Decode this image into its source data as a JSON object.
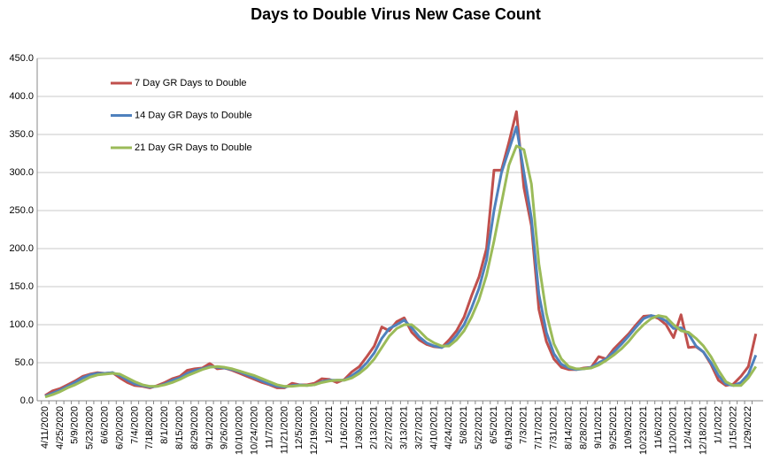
{
  "chart_data": {
    "type": "line",
    "title": "Days to Double Virus New Case Count",
    "categories": [
      "4/11/2020",
      null,
      "4/25/2020",
      null,
      "5/9/2020",
      null,
      "5/23/2020",
      null,
      "6/6/2020",
      null,
      "6/20/2020",
      null,
      "7/4/2020",
      null,
      "7/18/2020",
      null,
      "8/1/2020",
      null,
      "8/15/2020",
      null,
      "8/29/2020",
      null,
      "9/12/2020",
      null,
      "9/26/2020",
      null,
      "10/10/2020",
      null,
      "10/24/2020",
      null,
      "11/7/2020",
      null,
      "11/21/2020",
      null,
      "12/5/2020",
      null,
      "12/19/2020",
      null,
      "1/2/2021",
      null,
      "1/16/2021",
      null,
      "1/30/2021",
      null,
      "2/13/2021",
      null,
      "2/27/2021",
      null,
      "3/13/2021",
      null,
      "3/27/2021",
      null,
      "4/10/2021",
      null,
      "4/24/2021",
      null,
      "5/8/2021",
      null,
      "5/22/2021",
      null,
      "6/5/2021",
      null,
      "6/19/2021",
      null,
      "7/3/2021",
      null,
      "7/17/2021",
      null,
      "7/31/2021",
      null,
      "8/14/2021",
      null,
      "8/28/2021",
      null,
      "9/11/2021",
      null,
      "9/25/2021",
      null,
      "10/9/2021",
      null,
      "10/23/2021",
      null,
      "11/6/2021",
      null,
      "11/20/2021",
      null,
      "12/4/2021",
      null,
      "12/18/2021",
      null,
      "1/1/2022",
      null,
      "1/15/2022",
      null,
      "1/29/2022",
      null
    ],
    "series": [
      {
        "name": "7 Day GR Days to Double",
        "color": "#c0504d",
        "values": [
          7,
          13,
          16,
          21,
          26,
          32,
          35,
          37,
          36,
          37,
          30,
          24,
          20,
          19,
          17,
          20,
          24,
          29,
          32,
          40,
          42,
          43,
          49,
          42,
          43,
          40,
          36,
          32,
          28,
          24,
          21,
          17,
          17,
          23,
          21,
          21,
          23,
          29,
          28,
          24,
          28,
          38,
          45,
          58,
          72,
          97,
          92,
          104,
          109,
          90,
          80,
          74,
          71,
          70,
          80,
          92,
          110,
          138,
          163,
          200,
          303,
          303,
          340,
          380,
          280,
          230,
          120,
          78,
          55,
          44,
          41,
          41,
          43,
          44,
          58,
          55,
          68,
          78,
          88,
          100,
          111,
          112,
          108,
          100,
          83,
          113,
          70,
          71,
          64,
          48,
          27,
          20,
          22,
          32,
          45,
          88
        ]
      },
      {
        "name": "14 Day GR Days to Double",
        "color": "#4f81bd",
        "values": [
          6,
          10,
          14,
          19,
          24,
          30,
          34,
          36,
          36,
          37,
          33,
          27,
          22,
          20,
          18,
          19,
          22,
          27,
          30,
          36,
          40,
          42,
          45,
          44,
          43,
          41,
          38,
          34,
          30,
          26,
          22,
          19,
          18,
          20,
          21,
          20,
          21,
          25,
          27,
          27,
          27,
          33,
          40,
          50,
          63,
          82,
          95,
          100,
          106,
          96,
          84,
          76,
          72,
          70,
          75,
          86,
          100,
          122,
          148,
          185,
          250,
          300,
          330,
          360,
          300,
          240,
          140,
          90,
          62,
          48,
          43,
          41,
          42,
          44,
          50,
          55,
          64,
          74,
          85,
          97,
          108,
          112,
          110,
          105,
          95,
          96,
          88,
          72,
          64,
          50,
          33,
          22,
          20,
          24,
          35,
          60
        ]
      },
      {
        "name": "21 Day GR Days to Double",
        "color": "#9bbb59",
        "values": [
          5,
          8,
          12,
          17,
          21,
          26,
          31,
          34,
          35,
          36,
          35,
          30,
          25,
          21,
          19,
          19,
          21,
          24,
          28,
          33,
          37,
          41,
          44,
          45,
          44,
          42,
          39,
          36,
          33,
          29,
          25,
          21,
          19,
          19,
          20,
          20,
          21,
          24,
          26,
          27,
          27,
          30,
          36,
          44,
          55,
          70,
          85,
          95,
          100,
          100,
          92,
          82,
          76,
          72,
          72,
          80,
          92,
          110,
          133,
          165,
          210,
          260,
          310,
          335,
          330,
          285,
          180,
          115,
          75,
          55,
          45,
          42,
          42,
          43,
          47,
          53,
          60,
          68,
          78,
          90,
          100,
          108,
          112,
          110,
          100,
          92,
          90,
          82,
          72,
          58,
          40,
          25,
          20,
          20,
          30,
          45
        ]
      }
    ],
    "ylim": [
      0,
      450
    ],
    "yticks": [
      {
        "value": 0,
        "label": "0.0"
      },
      {
        "value": 50,
        "label": "50.0"
      },
      {
        "value": 100,
        "label": "100.0"
      },
      {
        "value": 150,
        "label": "150.0"
      },
      {
        "value": 200,
        "label": "200.0"
      },
      {
        "value": 250,
        "label": "250.0"
      },
      {
        "value": 300,
        "label": "300.0"
      },
      {
        "value": 350,
        "label": "350.0"
      },
      {
        "value": 400,
        "label": "400.0"
      },
      {
        "value": 450,
        "label": "450.0"
      }
    ],
    "grid": true
  }
}
